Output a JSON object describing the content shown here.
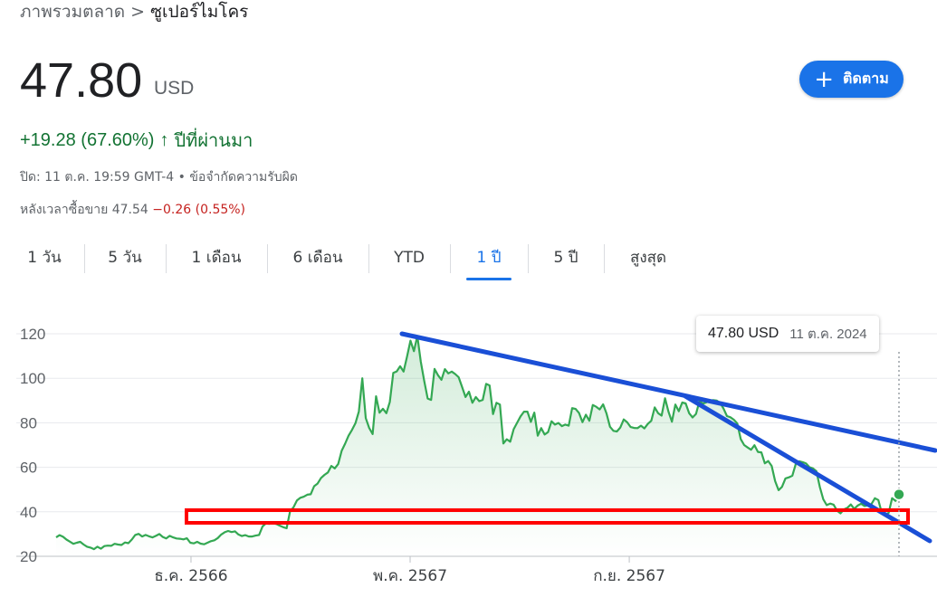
{
  "breadcrumb": {
    "parent": "ภาพรวมตลาด",
    "separator": ">",
    "current": "ซูเปอร์ไมโคร"
  },
  "quote": {
    "price": "47.80",
    "currency": "USD",
    "change": "+19.28 (67.60%)",
    "change_arrow": "↑",
    "change_period": "ปีที่ผ่านมา",
    "close_info": "ปิด: 11 ต.ค. 19:59 GMT-4",
    "bullet": "•",
    "disclaimer": "ข้อจำกัดความรับผิด",
    "after_hours_label": "หลังเวลาซื้อขาย 47.54",
    "after_hours_change": "−0.26 (0.55%)"
  },
  "follow_button": {
    "icon": "plus-icon",
    "label": "ติดตาม"
  },
  "tabs": [
    {
      "label": "1 วัน"
    },
    {
      "label": "5 วัน"
    },
    {
      "label": "1 เดือน"
    },
    {
      "label": "6 เดือน"
    },
    {
      "label": "YTD"
    },
    {
      "label": "1 ปี"
    },
    {
      "label": "5 ปี"
    },
    {
      "label": "สูงสุด"
    }
  ],
  "active_tab": "1 ปี",
  "tooltip": {
    "price": "47.80 USD",
    "date": "11 ต.ค. 2024"
  },
  "colors": {
    "accent": "#1a73e8",
    "positive": "#137333",
    "negative": "#c5221f",
    "line": "#34a853",
    "annotation_line": "#1a4fd6",
    "annotation_box": "#ff0000"
  },
  "chart_data": {
    "type": "area",
    "yticks": [
      120,
      100,
      80,
      60,
      40,
      20
    ],
    "ylim": [
      20,
      120
    ],
    "xticks": [
      "ธ.ค. 2566",
      "พ.ค. 2567",
      "ก.ย. 2567"
    ],
    "x_index_range": [
      0,
      250
    ],
    "xtick_index": [
      40,
      105,
      170
    ],
    "grid": true,
    "series": [
      {
        "values": [
          28.5,
          29.5,
          28.8,
          27.5,
          26.6,
          25.6,
          26.1,
          26.5,
          25.3,
          24.3,
          23.9,
          23.2,
          24.3,
          23.4,
          24.6,
          24.8,
          24.7,
          25.6,
          25.3,
          25.1,
          26.2,
          25.9,
          27.5,
          29.6,
          30.1,
          28.9,
          29.6,
          29.0,
          28.5,
          29.2,
          30.0,
          28.7,
          28.0,
          29.2,
          28.5,
          28.0,
          27.9,
          27.6,
          28.1,
          26.1,
          25.8,
          26.5,
          25.7,
          25.4,
          26.1,
          26.8,
          27.2,
          28.2,
          29.8,
          30.8,
          31.4,
          30.9,
          31.2,
          29.8,
          29.1,
          29.5,
          28.9,
          28.9,
          29.3,
          29.6,
          33.4,
          34.8,
          34.6,
          34.9,
          34.5,
          33.8,
          33.1,
          32.6,
          40.2,
          42.0,
          45.1,
          46.3,
          46.8,
          47.7,
          47.9,
          51.5,
          52.7,
          55.2,
          56.6,
          57.7,
          60.6,
          59.5,
          61.5,
          67.4,
          70.6,
          74.2,
          76.8,
          79.8,
          85.1,
          100.0,
          82.1,
          77.7,
          74.9,
          91.9,
          84.5,
          86.3,
          84.3,
          89.4,
          102.4,
          103.1,
          105.4,
          103.0,
          109.7,
          116.9,
          112.2,
          119.0,
          107.5,
          98.8,
          90.9,
          90.3,
          104.2,
          101.4,
          99.3,
          104.1,
          102.2,
          103.0,
          101.9,
          100.5,
          96.1,
          91.6,
          94.0,
          89.0,
          91.6,
          89.7,
          90.3,
          97.5,
          96.8,
          83.9,
          89.0,
          88.2,
          70.7,
          72.6,
          71.5,
          77.1,
          80.0,
          82.9,
          85.0,
          85.0,
          80.4,
          84.6,
          74.2,
          77.6,
          74.7,
          75.8,
          80.7,
          79.2,
          79.9,
          78.5,
          79.2,
          78.7,
          86.6,
          86.2,
          84.4,
          80.3,
          83.6,
          80.9,
          88.0,
          87.2,
          86.0,
          88.3,
          84.1,
          78.2,
          76.4,
          76.1,
          77.9,
          81.5,
          80.2,
          78.1,
          77.7,
          77.6,
          78.7,
          77.5,
          79.5,
          80.9,
          86.9,
          84.3,
          83.2,
          91.0,
          85.0,
          80.5,
          88.2,
          85.2,
          89.1,
          88.7,
          84.3,
          82.4,
          84.0,
          89.7,
          88.6,
          89.2,
          90.0,
          90.2,
          90.0,
          89.0,
          86.4,
          83.0,
          82.5,
          81.4,
          79.7,
          72.7,
          70.0,
          68.9,
          67.9,
          69.9,
          66.9,
          66.7,
          61.8,
          62.8,
          60.6,
          53.8,
          49.7,
          51.2,
          55.0,
          55.5,
          56.2,
          61.5,
          62.7,
          62.3,
          61.7,
          60.0,
          59.5,
          58.2,
          51.1,
          45.6,
          43.0,
          43.7,
          43.2,
          40.5,
          39.3,
          41.1,
          41.8,
          43.3,
          41.3,
          42.8,
          43.6,
          42.6,
          42.9,
          43.5,
          46.1,
          45.3,
          39.5,
          38.7,
          39.5,
          46.1,
          44.9,
          47.8
        ]
      }
    ]
  }
}
